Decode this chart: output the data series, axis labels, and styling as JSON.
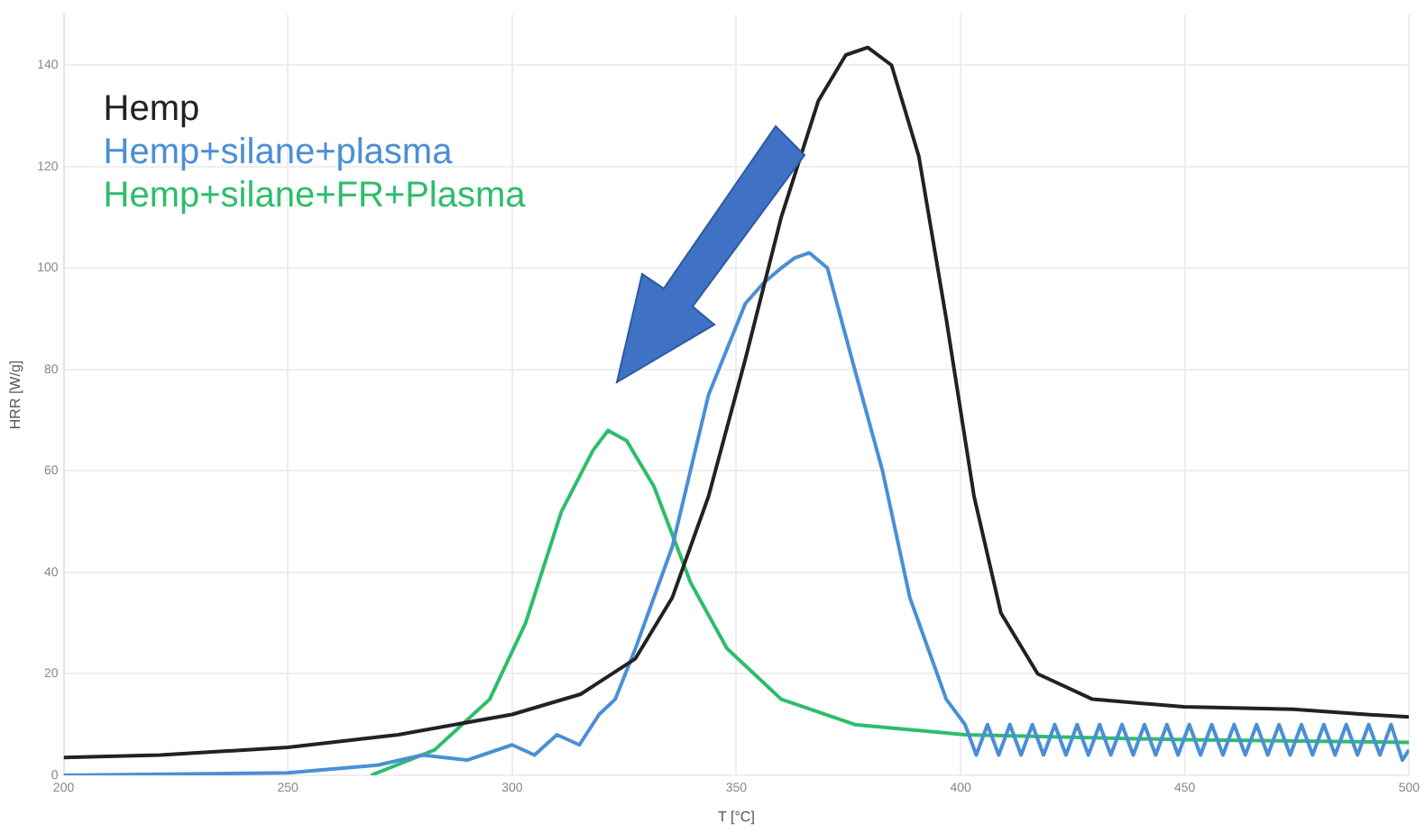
{
  "chart_data": {
    "type": "line",
    "xlabel": "T [°C]",
    "ylabel": "HRR [W/g]",
    "xlim": [
      200,
      500
    ],
    "xticks": [
      200,
      250,
      300,
      350,
      400,
      450,
      500
    ],
    "ylim": [
      0,
      150
    ],
    "yticks": [
      0,
      20,
      40,
      60,
      80,
      100,
      120,
      140
    ],
    "grid": true,
    "legend": "top left",
    "marker": "none",
    "line_style": "solid",
    "series": [
      {
        "name": "Hemp",
        "color": "#222222",
        "x": [
          200,
          221.6,
          250,
          274.6,
          300,
          315.3,
          327.5,
          335.7,
          343.8,
          352,
          360,
          368.3,
          374.4,
          379.3,
          384.6,
          390.7,
          396.8,
          403,
          409,
          417.2,
          429.4,
          449.8,
          474.2,
          490.5,
          500
        ],
        "values": [
          3.5,
          4,
          5.5,
          8,
          12,
          16,
          23,
          35,
          55,
          82,
          110,
          133,
          142,
          143.5,
          140,
          122,
          90,
          55,
          32,
          20,
          15,
          13.5,
          13,
          12,
          11.5
        ]
      },
      {
        "name": "Hemp+silane+plasma",
        "color": "#4a8fd6",
        "x": [
          200,
          250,
          270,
          280,
          290,
          300,
          305,
          310,
          315,
          319.4,
          323,
          327.5,
          335.7,
          343.8,
          352,
          356,
          360,
          363,
          366.3,
          370.3,
          376.4,
          382.6,
          388.7,
          396.8,
          401,
          403.5,
          406,
          408.5,
          411,
          413.5,
          416,
          418.5,
          421,
          423.5,
          426,
          428.5,
          431,
          433.5,
          436,
          438.5,
          441,
          443.5,
          446,
          448.5,
          451,
          453.5,
          456,
          458.5,
          461,
          463.5,
          466,
          468.5,
          471,
          473.5,
          476,
          478.5,
          481,
          483.5,
          486,
          488.5,
          491,
          493.5,
          496,
          498.5,
          500
        ],
        "values": [
          0,
          0.5,
          2,
          4,
          3,
          6,
          4,
          8,
          6,
          12,
          15,
          25,
          45,
          75,
          93,
          97,
          100,
          102,
          103,
          100,
          80,
          60,
          35,
          15,
          10,
          4,
          10,
          4,
          10,
          4,
          10,
          4,
          10,
          4,
          10,
          4,
          10,
          4,
          10,
          4,
          10,
          4,
          10,
          4,
          10,
          4,
          10,
          4,
          10,
          4,
          10,
          4,
          10,
          4,
          10,
          4,
          10,
          4,
          10,
          4,
          10,
          4,
          10,
          3,
          5
        ]
      },
      {
        "name": "Hemp+silane+FR+Plasma",
        "color": "#2ebd6b",
        "x": [
          268.5,
          282.7,
          295,
          303,
          311,
          318,
          321.4,
          325.5,
          331.6,
          339.8,
          347.9,
          360,
          376.4,
          401,
          450,
          500
        ],
        "values": [
          0,
          5,
          15,
          30,
          52,
          64,
          68,
          66,
          57,
          38,
          25,
          15,
          10,
          8,
          7,
          6.5
        ]
      }
    ]
  }
}
